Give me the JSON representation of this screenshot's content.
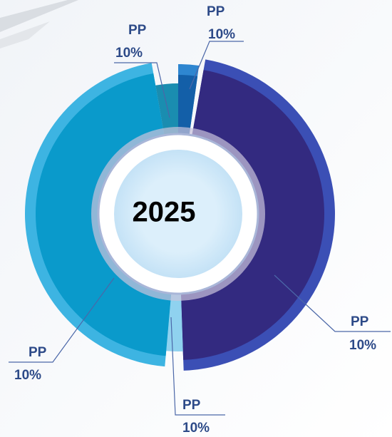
{
  "center": "2025",
  "labels": [
    {
      "name": "PP",
      "value": "10%"
    },
    {
      "name": "PP",
      "value": "10%"
    },
    {
      "name": "PP",
      "value": "10%"
    },
    {
      "name": "PP",
      "value": "10%"
    },
    {
      "name": "PP",
      "value": "10%"
    }
  ]
}
